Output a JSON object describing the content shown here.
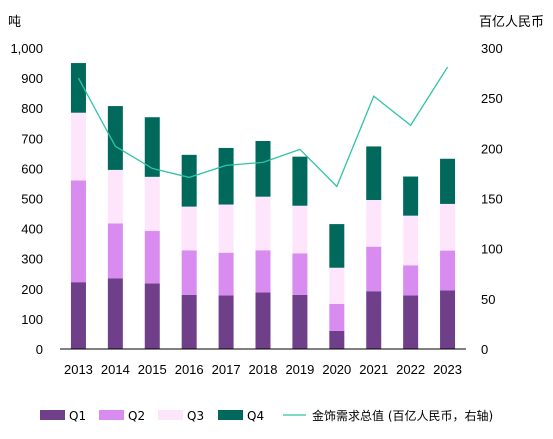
{
  "chart_data": {
    "type": "bar",
    "stacked": true,
    "categories": [
      "2013",
      "2014",
      "2015",
      "2016",
      "2017",
      "2018",
      "2019",
      "2020",
      "2021",
      "2022",
      "2023"
    ],
    "left_axis": {
      "unit_label": "吨",
      "ylim": [
        0,
        1000
      ],
      "ticks": [
        "0",
        "100",
        "200",
        "300",
        "400",
        "500",
        "600",
        "700",
        "800",
        "900",
        "1,000"
      ]
    },
    "right_axis": {
      "unit_label": "百亿人民币",
      "ylim": [
        0,
        300
      ],
      "ticks": [
        "0",
        "50",
        "100",
        "150",
        "200",
        "250",
        "300"
      ]
    },
    "series": [
      {
        "name": "Q1",
        "color": "#6f3f8a",
        "values": [
          222,
          235,
          218,
          180,
          178,
          188,
          180,
          60,
          192,
          178,
          195
        ]
      },
      {
        "name": "Q2",
        "color": "#d98cf0",
        "values": [
          338,
          182,
          174,
          148,
          142,
          140,
          138,
          90,
          148,
          100,
          132
        ]
      },
      {
        "name": "Q3",
        "color": "#fde6fb",
        "values": [
          225,
          178,
          180,
          145,
          160,
          178,
          158,
          120,
          155,
          165,
          155
        ]
      },
      {
        "name": "Q4",
        "color": "#00695c",
        "values": [
          165,
          212,
          198,
          172,
          188,
          185,
          163,
          145,
          178,
          130,
          150
        ]
      }
    ],
    "line_series": {
      "name": "金饰需求总值 (百亿人民币，右轴)",
      "color": "#2ec4a5",
      "axis": "right",
      "values": [
        270,
        202,
        180,
        171,
        183,
        186,
        199,
        162,
        252,
        223,
        281
      ]
    },
    "legend_position": "bottom",
    "grid": false
  }
}
